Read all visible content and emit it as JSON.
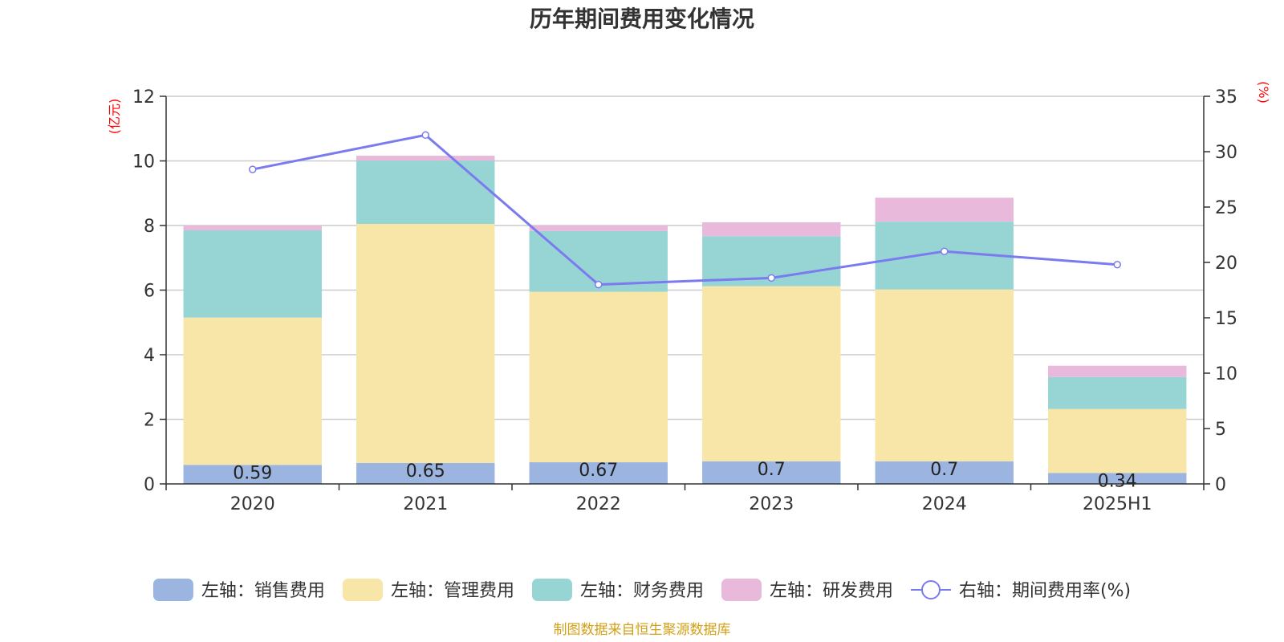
{
  "chart_data": {
    "type": "bar",
    "title": "历年期间费用变化情况",
    "categories": [
      "2020",
      "2021",
      "2022",
      "2023",
      "2024",
      "2025H1"
    ],
    "left_axis": {
      "unit": "(亿元)",
      "ylim": [
        0,
        12
      ],
      "ticks": [
        "0",
        "2",
        "4",
        "6",
        "8",
        "10",
        "12"
      ]
    },
    "right_axis": {
      "unit": "(%)",
      "ylim": [
        0,
        35
      ],
      "ticks": [
        "0",
        "5",
        "10",
        "15",
        "20",
        "25",
        "30",
        "35"
      ]
    },
    "series": [
      {
        "name": "左轴：销售费用",
        "kind": "bar",
        "axis": "left",
        "color": "#9bb5e0",
        "values": [
          0.59,
          0.65,
          0.67,
          0.7,
          0.7,
          0.34
        ],
        "labels": [
          "0.59",
          "0.65",
          "0.67",
          "0.7",
          "0.7",
          "0.34"
        ]
      },
      {
        "name": "左轴：管理费用",
        "kind": "bar",
        "axis": "left",
        "color": "#f8e6a8",
        "values": [
          4.56,
          7.4,
          5.28,
          5.42,
          5.32,
          1.98
        ]
      },
      {
        "name": "左轴：财务费用",
        "kind": "bar",
        "axis": "left",
        "color": "#97d4d4",
        "values": [
          2.7,
          1.96,
          1.88,
          1.55,
          2.1,
          0.99
        ]
      },
      {
        "name": "左轴：研发费用",
        "kind": "bar",
        "axis": "left",
        "color": "#e8b9da",
        "values": [
          0.15,
          0.15,
          0.17,
          0.43,
          0.74,
          0.35
        ]
      },
      {
        "name": "右轴：期间费用率(%)",
        "kind": "line",
        "axis": "right",
        "color": "#7b7bef",
        "values": [
          28.4,
          31.5,
          18.0,
          18.6,
          21.0,
          19.8
        ]
      }
    ],
    "grid": true,
    "legend_position": "bottom",
    "source": "制图数据来自恒生聚源数据库"
  }
}
